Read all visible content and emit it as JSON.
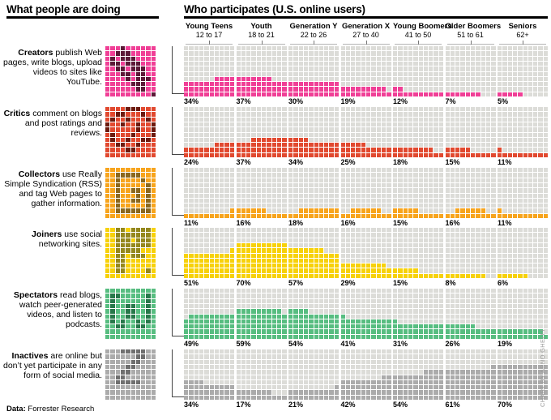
{
  "page": {
    "left_header": "What people are doing",
    "right_header": "Who participates (U.S. online users)",
    "credit": "CHART BY ARNO GHELFI",
    "footer": {
      "label": "Data:",
      "text": " Forrester Research"
    }
  },
  "colors": {
    "grid_empty": "#dcdcd8",
    "connector": "#444444",
    "credit_text": "#999999"
  },
  "columns": [
    {
      "name": "Young Teens",
      "range": "12 to 17"
    },
    {
      "name": "Youth",
      "range": "18 to 21"
    },
    {
      "name": "Generation Y",
      "range": "22 to 26"
    },
    {
      "name": "Generation X",
      "range": "27 to 40"
    },
    {
      "name": "Young Boomers",
      "range": "41 to 50"
    },
    {
      "name": "Older Boomers",
      "range": "51 to 61"
    },
    {
      "name": "Seniors",
      "range": "62+"
    }
  ],
  "categories": [
    {
      "key": "creators",
      "term": "Creators",
      "desc": " publish Web pages, write blogs, upload videos to sites like YouTube.",
      "color": "#f03f96",
      "dark": "#5c1837",
      "values": [
        34,
        37,
        30,
        19,
        12,
        7,
        5
      ],
      "labels": [
        "34%",
        "37%",
        "30%",
        "19%",
        "12%",
        "7%",
        "5%"
      ],
      "aligns": [
        "right",
        "left",
        "left",
        "left",
        "left",
        "left",
        "left"
      ],
      "icon": [
        "...#......",
        "..###.....",
        ".#.###....",
        ".##.###...",
        "..##.###..",
        "...##.##..",
        "....#.###.",
        ".....###..",
        "......##..",
        ".........#"
      ]
    },
    {
      "key": "critics",
      "term": "Critics",
      "desc": " comment on blogs and post ratings and reviews.",
      "color": "#e1492f",
      "dark": "#6d1a0e",
      "values": [
        24,
        37,
        34,
        25,
        18,
        15,
        11
      ],
      "labels": [
        "24%",
        "37%",
        "34%",
        "25%",
        "18%",
        "15%",
        "11%"
      ],
      "aligns": [
        "right",
        "right",
        "left",
        "left",
        "left",
        "left",
        "left"
      ],
      "icon": [
        "....###...",
        "..##...#..",
        ".#..#...#.",
        "#..#..#..#",
        "#.....#..#",
        ".#...#...#",
        ".#..#..##.",
        "..##..#...",
        "....##....",
        ".........."
      ]
    },
    {
      "key": "collectors",
      "term": "Collectors",
      "desc": " use Really Simple Syndication (RSS) and tag Web pages to gather information.",
      "color": "#f7a41c",
      "dark": "#8a671e",
      "values": [
        11,
        16,
        18,
        16,
        15,
        16,
        11
      ],
      "labels": [
        "11%",
        "16%",
        "18%",
        "16%",
        "15%",
        "16%",
        "11%"
      ],
      "aligns": [
        "right",
        "left",
        "right",
        "center",
        "left",
        "center",
        "left"
      ],
      "icon": [
        "..........",
        "..#####...",
        "..#....#..",
        "..#.....#.",
        "..#..##.#.",
        "..#...#.#.",
        "..#..##.#.",
        "..#.....#.",
        "..#######.",
        ".........."
      ]
    },
    {
      "key": "joiners",
      "term": "Joiners",
      "desc": " use social networking sites.",
      "color": "#f7d109",
      "dark": "#94871c",
      "values": [
        51,
        70,
        57,
        29,
        15,
        8,
        6
      ],
      "labels": [
        "51%",
        "70%",
        "57%",
        "29%",
        "15%",
        "8%",
        "6%"
      ],
      "aligns": [
        "right",
        "left",
        "left",
        "left",
        "left",
        "left",
        "left"
      ],
      "icon": [
        "..##.####.",
        "..#######.",
        "..###.###.",
        "..#######.",
        "..#####...",
        "..##.###..",
        "..##......",
        "..##......",
        "..##....#.",
        ".........."
      ]
    },
    {
      "key": "spectators",
      "term": "Spectators",
      "desc": " read blogs, watch peer-generated videos, and listen to podcasts.",
      "color": "#57bd80",
      "dark": "#27784a",
      "values": [
        49,
        59,
        54,
        41,
        31,
        26,
        19
      ],
      "labels": [
        "49%",
        "59%",
        "54%",
        "41%",
        "31%",
        "26%",
        "19%"
      ],
      "aligns": [
        "right",
        "left",
        "left",
        "left",
        "left",
        "left",
        "left"
      ],
      "icon": [
        "..........",
        ".##.....#.",
        ".#......#.",
        ".#..##..#.",
        ".#..##..#.",
        ".#..##..#.",
        ".#.#..#.#.",
        "..##..##..",
        "..........",
        ".........."
      ]
    },
    {
      "key": "inactives",
      "term": "Inactives",
      "desc": " are online but don’t yet participate in any form of social media.",
      "color": "#ababab",
      "dark": "#6f6f6f",
      "values": [
        34,
        17,
        21,
        42,
        54,
        61,
        70
      ],
      "labels": [
        "34%",
        "17%",
        "21%",
        "42%",
        "54%",
        "61%",
        "70%"
      ],
      "aligns": [
        "left",
        "left",
        "right",
        "right",
        "right",
        "right",
        "left"
      ],
      "icon": [
        "...#####..",
        "......##..",
        ".....##...",
        "....##....",
        "...##.....",
        "..##......",
        "..#####...",
        "..........",
        "..........",
        ".........."
      ]
    }
  ],
  "chart_data": {
    "type": "bar",
    "variant": "waffle-grid-percent",
    "title": "Who participates (U.S. online users)",
    "unit": "%",
    "ylim": [
      0,
      100
    ],
    "categories": [
      "Young Teens 12 to 17",
      "Youth 18 to 21",
      "Generation Y 22 to 26",
      "Generation X 27 to 40",
      "Young Boomers 41 to 50",
      "Older Boomers 51 to 61",
      "Seniors 62+"
    ],
    "series": [
      {
        "name": "Creators",
        "values": [
          34,
          37,
          30,
          19,
          12,
          7,
          5
        ]
      },
      {
        "name": "Critics",
        "values": [
          24,
          37,
          34,
          25,
          18,
          15,
          11
        ]
      },
      {
        "name": "Collectors",
        "values": [
          11,
          16,
          18,
          16,
          15,
          16,
          11
        ]
      },
      {
        "name": "Joiners",
        "values": [
          51,
          70,
          57,
          29,
          15,
          8,
          6
        ]
      },
      {
        "name": "Spectators",
        "values": [
          49,
          59,
          54,
          41,
          31,
          26,
          19
        ]
      },
      {
        "name": "Inactives",
        "values": [
          34,
          17,
          21,
          42,
          54,
          61,
          70
        ]
      }
    ],
    "source": "Forrester Research"
  }
}
